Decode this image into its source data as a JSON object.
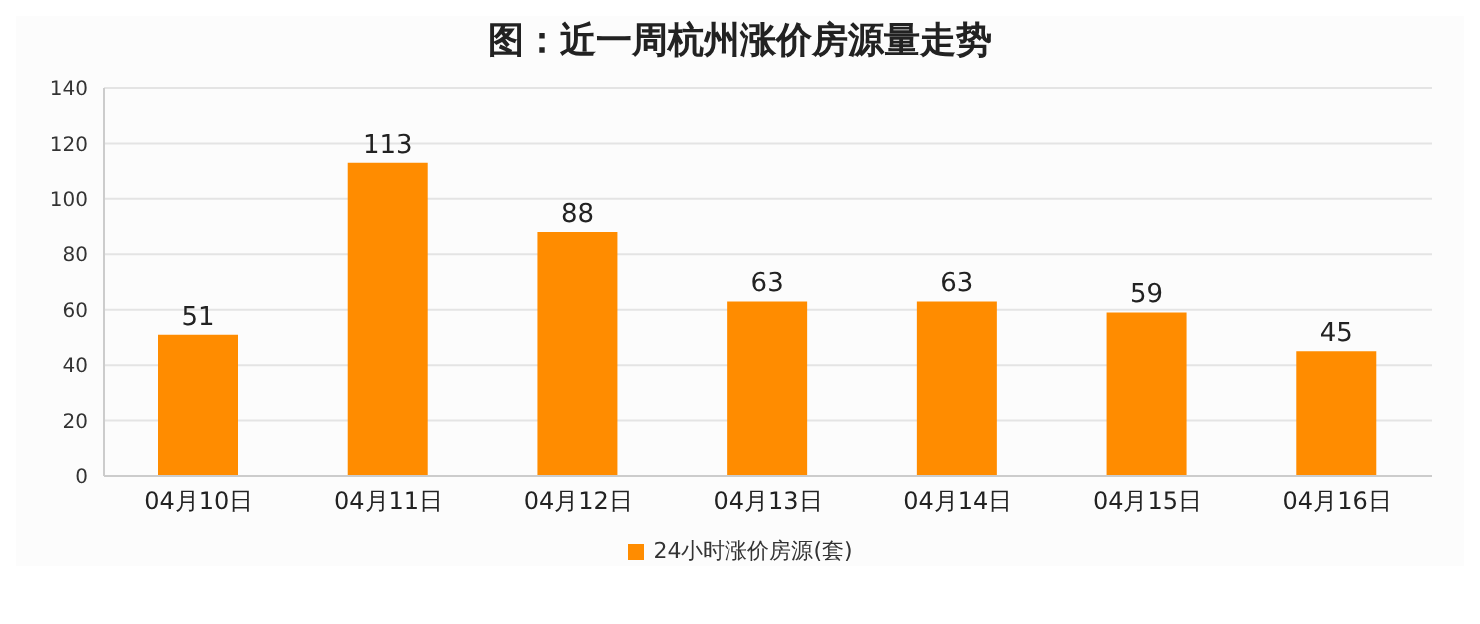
{
  "chart_data": {
    "type": "bar",
    "title": "图：近一周杭州涨价房源量走势",
    "categories": [
      "04月10日",
      "04月11日",
      "04月12日",
      "04月13日",
      "04月14日",
      "04月15日",
      "04月16日"
    ],
    "series": [
      {
        "name": "24小时涨价房源(套)",
        "color": "#ff8c00",
        "values": [
          51,
          113,
          88,
          63,
          63,
          59,
          45
        ]
      }
    ],
    "ylim": [
      0,
      140
    ],
    "yticks": [
      0,
      20,
      40,
      60,
      80,
      100,
      120,
      140
    ],
    "grid": "y",
    "legend": "bottom",
    "data_labels": true
  }
}
